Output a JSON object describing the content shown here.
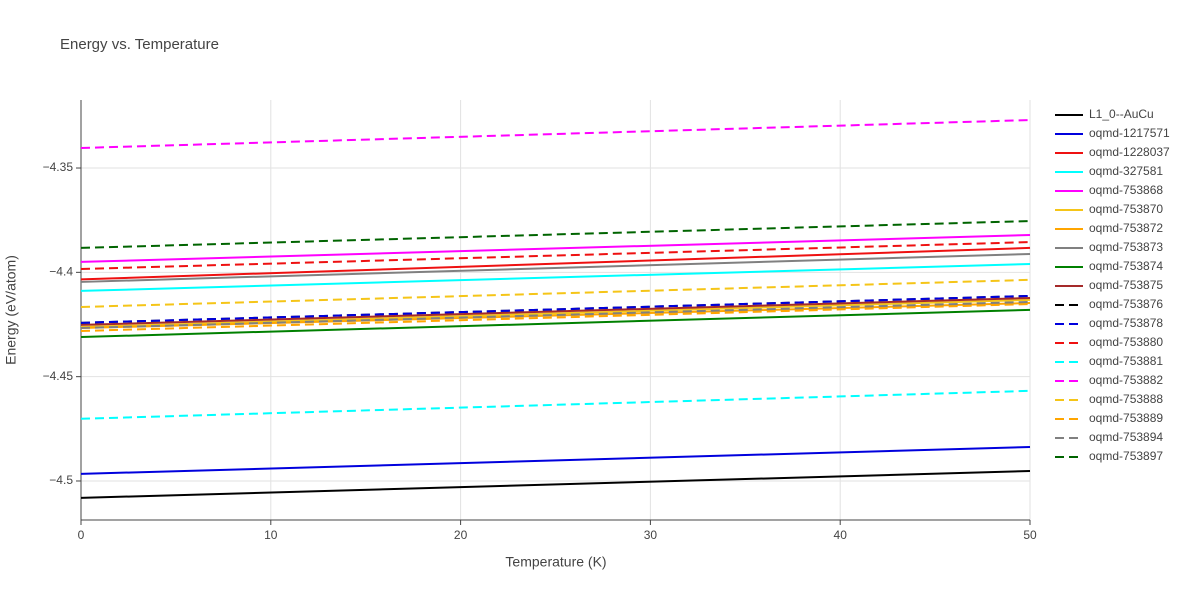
{
  "chart_data": {
    "type": "line",
    "title": "Energy vs. Temperature",
    "xlabel": "Temperature (K)",
    "ylabel": "Energy (eV/atom)",
    "x": [
      0,
      50
    ],
    "xlim": [
      0,
      50
    ],
    "xticks": [
      0,
      10,
      20,
      30,
      40,
      50
    ],
    "ylim": [
      -4.5187,
      -4.3174
    ],
    "yticks": [
      {
        "value": -4.5,
        "label": "−4.5"
      },
      {
        "value": -4.45,
        "label": "−4.45"
      },
      {
        "value": -4.4,
        "label": "−4.4"
      },
      {
        "value": -4.35,
        "label": "−4.35"
      }
    ],
    "grid": true,
    "legend": "right",
    "series": [
      {
        "name": "L1_0--AuCu",
        "color": "#000000",
        "dash": "solid",
        "values": [
          -4.5081,
          -4.4952
        ]
      },
      {
        "name": "oqmd-1217571",
        "color": "#0000dd",
        "dash": "solid",
        "values": [
          -4.4966,
          -4.4837
        ]
      },
      {
        "name": "oqmd-1228037",
        "color": "#ee1111",
        "dash": "solid",
        "values": [
          -4.4034,
          -4.3883
        ]
      },
      {
        "name": "oqmd-327581",
        "color": "#00ffff",
        "dash": "solid",
        "values": [
          -4.4089,
          -4.396
        ]
      },
      {
        "name": "oqmd-753868",
        "color": "#ff00ff",
        "dash": "solid",
        "values": [
          -4.395,
          -4.3821
        ]
      },
      {
        "name": "oqmd-753870",
        "color": "#f5c518",
        "dash": "solid",
        "values": [
          -4.4262,
          -4.4132
        ]
      },
      {
        "name": "oqmd-753872",
        "color": "#ffa500",
        "dash": "solid",
        "values": [
          -4.4267,
          -4.4147
        ]
      },
      {
        "name": "oqmd-753873",
        "color": "#808080",
        "dash": "solid",
        "values": [
          -4.4046,
          -4.3912
        ]
      },
      {
        "name": "oqmd-753874",
        "color": "#008000",
        "dash": "solid",
        "values": [
          -4.431,
          -4.418
        ]
      },
      {
        "name": "oqmd-753875",
        "color": "#a52a2a",
        "dash": "solid",
        "values": [
          -4.4252,
          -4.4123
        ]
      },
      {
        "name": "oqmd-753876",
        "color": "#000000",
        "dash": "dash",
        "values": [
          -4.4242,
          -4.4113
        ]
      },
      {
        "name": "oqmd-753878",
        "color": "#0000dd",
        "dash": "dash",
        "values": [
          -4.4242,
          -4.4113
        ]
      },
      {
        "name": "oqmd-753880",
        "color": "#ee1111",
        "dash": "dash",
        "values": [
          -4.3984,
          -4.3855
        ]
      },
      {
        "name": "oqmd-753881",
        "color": "#00ffff",
        "dash": "dash",
        "values": [
          -4.4702,
          -4.4568
        ]
      },
      {
        "name": "oqmd-753882",
        "color": "#ff00ff",
        "dash": "dash",
        "values": [
          -4.3404,
          -4.327
        ]
      },
      {
        "name": "oqmd-753888",
        "color": "#f5c518",
        "dash": "dash",
        "values": [
          -4.4166,
          -4.4036
        ]
      },
      {
        "name": "oqmd-753889",
        "color": "#ffa500",
        "dash": "dash",
        "values": [
          -4.4281,
          -4.4152
        ]
      },
      {
        "name": "oqmd-753894",
        "color": "#808080",
        "dash": "dash",
        "values": [
          -4.4267,
          -4.4142
        ]
      },
      {
        "name": "oqmd-753897",
        "color": "#006400",
        "dash": "dash",
        "values": [
          -4.3883,
          -4.3754
        ]
      }
    ]
  }
}
